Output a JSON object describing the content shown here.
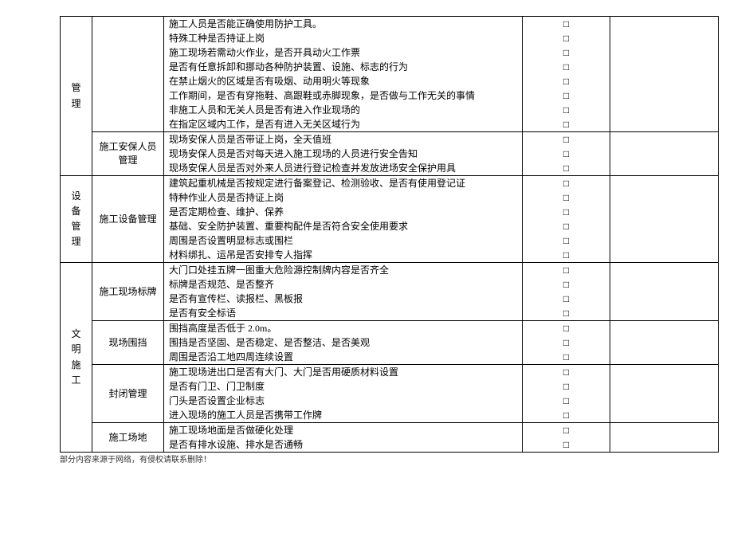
{
  "checkbox_glyph": "□",
  "footer_text": "部分内容来源于网络，有侵权请联系删除！",
  "sections": [
    {
      "col1": "管\n理",
      "subs": [
        {
          "label": "",
          "items": [
            "施工人员是否能正确使用防护工具。",
            "特殊工种是否持证上岗",
            "施工现场若需动火作业，是否开具动火工作票",
            "是否有任意拆卸和挪动各种防护装置、设施、标志的行为",
            "在禁止烟火的区域是否有吸烟、动用明火等现象",
            "工作期间，是否有穿拖鞋、高跟鞋或赤脚现象，是否做与工作无关的事情",
            "非施工人员和无关人员是否有进入作业现场的",
            "在指定区域内工作，是否有进入无关区域行为"
          ]
        },
        {
          "label": "施工安保人员\n管理",
          "items": [
            "现场安保人员是否带证上岗，全天值班",
            "现场安保人员是否对每天进入施工现场的人员进行安全告知",
            "现场安保人员是否对外来人员进行登记检查并发放进场安全保护用具"
          ]
        }
      ]
    },
    {
      "col1": "设\n备\n管\n理",
      "subs": [
        {
          "label": "施工设备管理",
          "items": [
            "建筑起重机械是否按规定进行备案登记、检测验收、是否有使用登记证",
            "特种作业人员是否持证上岗",
            "是否定期检查、维护、保养",
            "基础、安全防护装置、重要构配件是否符合安全使用要求",
            "周围是否设置明显标志或围栏",
            "材料绑扎、运吊是否安排专人指挥"
          ]
        }
      ]
    },
    {
      "col1": "文\n明\n施\n工",
      "subs": [
        {
          "label": "施工现场标牌",
          "items": [
            "大门口处挂五牌一图重大危险源控制牌内容是否齐全",
            "标牌是否规范、是否整齐",
            "是否有宣传栏、读报栏、黑板报",
            "是否有安全标语"
          ]
        },
        {
          "label": "现场围挡",
          "items": [
            "围挡高度是否低于 2.0m。",
            "围挡是否坚固、是否稳定、是否整洁、是否美观",
            "周围是否沿工地四周连续设置"
          ]
        },
        {
          "label": "封闭管理",
          "items": [
            "施工现场进出口是否有大门、大门是否用硬质材料设置",
            "是否有门卫、门卫制度",
            "门头是否设置企业标志",
            "进入现场的施工人员是否携带工作牌"
          ]
        },
        {
          "label": "施工场地",
          "items": [
            "施工现场地面是否做硬化处理",
            "是否有排水设施、排水是否通畅"
          ]
        }
      ]
    }
  ]
}
